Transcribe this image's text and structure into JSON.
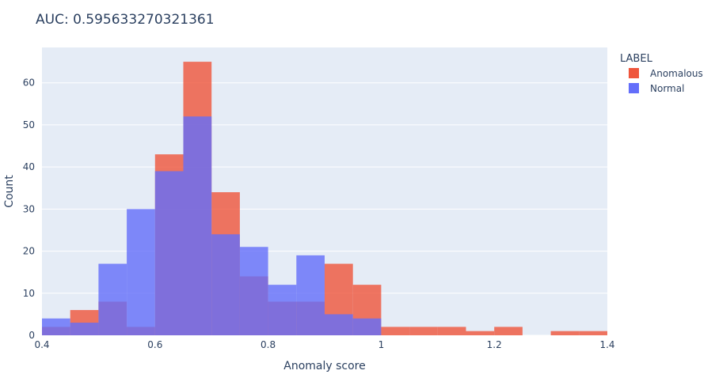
{
  "chart_data": {
    "type": "bar",
    "title": "AUC: 0.595633270321361",
    "xlabel": "Anomaly score",
    "ylabel": "Count",
    "xlim": [
      0.4,
      1.4
    ],
    "ylim": [
      0,
      68.4
    ],
    "x_ticks": [
      0.4,
      0.6,
      0.8,
      1,
      1.2,
      1.4
    ],
    "x_tick_labels": [
      "0.4",
      "0.6",
      "0.8",
      "1",
      "1.2",
      "1.4"
    ],
    "y_ticks": [
      0,
      10,
      20,
      30,
      40,
      50,
      60
    ],
    "bin_width": 0.05,
    "bin_starts": [
      0.4,
      0.45,
      0.5,
      0.55,
      0.6,
      0.65,
      0.7,
      0.75,
      0.8,
      0.85,
      0.9,
      0.95,
      1.0,
      1.05,
      1.1,
      1.15,
      1.2,
      1.25,
      1.3,
      1.35
    ],
    "barmode": "overlay",
    "grid": true,
    "legend": {
      "title": "LABEL",
      "position": "top-right"
    },
    "series": [
      {
        "name": "Anomalous",
        "color": "#EF553B",
        "values": [
          2,
          6,
          8,
          2,
          43,
          65,
          34,
          14,
          8,
          8,
          17,
          12,
          2,
          2,
          2,
          1,
          2,
          0,
          1,
          1
        ]
      },
      {
        "name": "Normal",
        "color": "#636EFA",
        "values": [
          4,
          3,
          17,
          30,
          39,
          52,
          24,
          21,
          12,
          19,
          5,
          4,
          0,
          0,
          0,
          0,
          0,
          0,
          0,
          0
        ]
      }
    ]
  }
}
